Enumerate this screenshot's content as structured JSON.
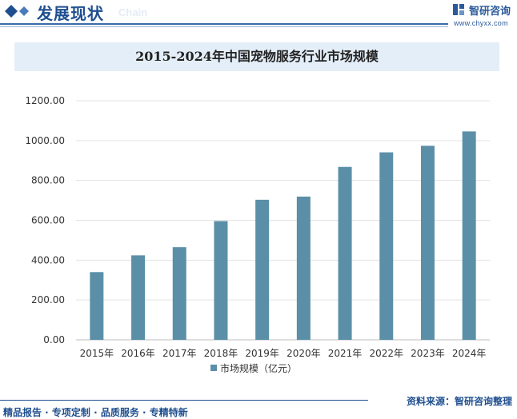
{
  "header": {
    "section_title": "发展现状",
    "watermark_word": "Chain",
    "brand_name": "智研咨询",
    "brand_url": "www.chyxx.com"
  },
  "footer": {
    "left_text": "精品报告 · 专项定制 · 品质服务 · 专精特新",
    "right_text": "资料来源：智研咨询整理"
  },
  "colors": {
    "bar": "#5b8fa7",
    "brand": "#1f4f8f",
    "title_band": "#e4eef8"
  },
  "chart_data": {
    "type": "bar",
    "title": "2015-2024年中国宠物服务行业市场规模",
    "categories": [
      "2015年",
      "2016年",
      "2017年",
      "2018年",
      "2019年",
      "2020年",
      "2021年",
      "2022年",
      "2023年",
      "2024年"
    ],
    "series": [
      {
        "name": "市场规模（亿元）",
        "values": [
          340,
          424,
          465,
          596,
          703,
          719,
          868,
          941,
          974,
          1046
        ]
      }
    ],
    "ylim": [
      0,
      1200
    ],
    "yticks": [
      "0.00",
      "200.00",
      "400.00",
      "600.00",
      "800.00",
      "1000.00",
      "1200.00"
    ],
    "grid": true,
    "legend_position": "bottom-center"
  }
}
